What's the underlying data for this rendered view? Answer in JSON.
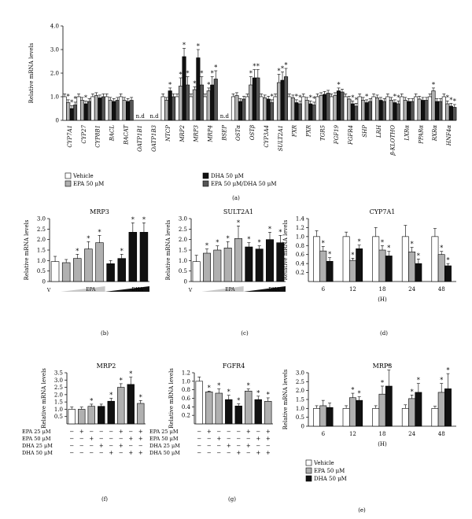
{
  "colors": {
    "white": "#ffffff",
    "gray": "#b0b0b0",
    "black": "#111111",
    "dark": "#555555"
  },
  "chart_data": [
    {
      "id": "a",
      "panel_label": "(a)",
      "type": "bar",
      "ylabel": "Relative mRNA levels",
      "ylim": [
        0,
        4.0
      ],
      "yticks": [
        "0",
        "1.0",
        "2.0",
        "3.0",
        "4.0"
      ],
      "series": [
        {
          "name": "Vehicle"
        },
        {
          "name": "EPA 50 μM"
        },
        {
          "name": "DHA 50 μM"
        },
        {
          "name": "EPA 50 μM/DHA 50 μM"
        }
      ],
      "legend": [
        "Vehicle",
        "EPA 50 μM",
        "DHA 50 μM",
        "EPA 50 μM/DHA 50 μM"
      ],
      "categories": [
        "CYP7A1",
        "CYP27",
        "CYP8B1",
        "BACL",
        "BACAT",
        "OATP1B1",
        "OATP1B3",
        "NTCP",
        "MRP2",
        "MRP3",
        "MRP4",
        "BSEP",
        "OSTα",
        "OSTβ",
        "CYP3A4",
        "SULT2A1",
        "FXR",
        "PXR",
        "TGR5",
        "FGF19",
        "FGFR4",
        "SHP",
        "LRH",
        "β-KLOTHO",
        "LXRα",
        "PPARα",
        "RXRα",
        "HNF4α"
      ],
      "values": [
        [
          1.0,
          0.75,
          0.5,
          0.65
        ],
        [
          1.0,
          0.85,
          0.7,
          0.8
        ],
        [
          1.0,
          1.05,
          0.95,
          1.0
        ],
        [
          1.0,
          0.85,
          0.8,
          0.85
        ],
        [
          1.0,
          0.85,
          0.8,
          0.85
        ],
        null,
        null,
        [
          1.0,
          0.85,
          1.25,
          1.0
        ],
        [
          1.0,
          1.45,
          2.7,
          1.5
        ],
        [
          1.0,
          1.3,
          2.65,
          1.5
        ],
        [
          1.0,
          1.25,
          1.5,
          1.75
        ],
        null,
        [
          1.0,
          1.05,
          0.8,
          0.9
        ],
        [
          1.0,
          1.5,
          1.8,
          1.8
        ],
        [
          1.0,
          0.95,
          0.9,
          0.75
        ],
        [
          1.0,
          1.6,
          1.7,
          1.85
        ],
        [
          1.0,
          0.95,
          0.75,
          0.7
        ],
        [
          1.0,
          0.85,
          0.7,
          0.65
        ],
        [
          1.0,
          1.05,
          1.1,
          1.15
        ],
        [
          1.0,
          1.05,
          1.25,
          1.2
        ],
        [
          1.0,
          0.9,
          0.7,
          0.6
        ],
        [
          1.0,
          0.85,
          0.75,
          0.8
        ],
        [
          1.0,
          0.95,
          0.85,
          0.8
        ],
        [
          1.0,
          0.85,
          0.75,
          0.7
        ],
        [
          1.0,
          0.85,
          0.8,
          0.8
        ],
        [
          1.0,
          0.9,
          0.85,
          0.85
        ],
        [
          1.0,
          1.25,
          0.8,
          0.8
        ],
        [
          1.0,
          0.7,
          0.6,
          0.55
        ]
      ],
      "na_label": "n.d"
    },
    {
      "id": "b",
      "panel_label": "(b)",
      "title": "MRP3",
      "type": "bar",
      "ylabel": "Relative mRNA levels",
      "ylim": [
        0,
        3.0
      ],
      "yticks": [
        "0",
        "0.5",
        "1.0",
        "1.5",
        "2.0",
        "2.5",
        "3.0"
      ],
      "values": [
        0.95,
        0.9,
        1.1,
        1.55,
        1.85,
        0.85,
        1.1,
        2.35,
        2.35
      ],
      "errors": [
        0.25,
        0.15,
        0.2,
        0.35,
        0.35,
        0.15,
        0.2,
        0.45,
        0.45
      ],
      "sig": [
        false,
        false,
        true,
        true,
        true,
        false,
        true,
        true,
        true
      ],
      "fills": [
        "white",
        "gray",
        "gray",
        "gray",
        "gray",
        "black",
        "black",
        "black",
        "black"
      ],
      "group_labels": [
        "V",
        "EPA",
        "DHA"
      ]
    },
    {
      "id": "c",
      "panel_label": "(c)",
      "title": "SULT2A1",
      "type": "bar",
      "ylabel": "Relative mRNA levels",
      "ylim": [
        0,
        3.0
      ],
      "yticks": [
        "0",
        "0.5",
        "1.0",
        "1.5",
        "2.0",
        "2.5",
        "3.0"
      ],
      "values": [
        0.95,
        1.35,
        1.5,
        1.6,
        2.05,
        1.65,
        1.55,
        2.0,
        1.85
      ],
      "errors": [
        0.3,
        0.2,
        0.2,
        0.3,
        0.6,
        0.2,
        0.15,
        0.35,
        0.35
      ],
      "sig": [
        false,
        true,
        true,
        true,
        true,
        true,
        true,
        true,
        true
      ],
      "fills": [
        "white",
        "gray",
        "gray",
        "gray",
        "gray",
        "black",
        "black",
        "black",
        "black"
      ],
      "group_labels": [
        "V",
        "EPA",
        "DHA"
      ]
    },
    {
      "id": "d",
      "panel_label": "(d)",
      "title": "CYP7A1",
      "type": "bar",
      "ylabel": "Relative mRNA levels",
      "xlabel": "(H)",
      "ylim": [
        0,
        1.4
      ],
      "yticks": [
        "0.2",
        "0.4",
        "0.6",
        "0.8",
        "1.0",
        "1.2",
        "1.4"
      ],
      "categories": [
        "6",
        "12",
        "18",
        "24",
        "48"
      ],
      "values": [
        [
          1.0,
          0.68,
          0.45
        ],
        [
          1.0,
          0.47,
          0.73
        ],
        [
          1.0,
          0.7,
          0.57
        ],
        [
          1.0,
          0.66,
          0.4
        ],
        [
          1.0,
          0.6,
          0.35
        ]
      ],
      "errors": [
        [
          0.13,
          0.1,
          0.08
        ],
        [
          0.1,
          0.05,
          0.08
        ],
        [
          0.2,
          0.1,
          0.1
        ],
        [
          0.25,
          0.1,
          0.1
        ],
        [
          0.18,
          0.07,
          0.05
        ]
      ],
      "sig": [
        [
          false,
          true,
          true
        ],
        [
          false,
          true,
          true
        ],
        [
          false,
          true,
          true
        ],
        [
          false,
          true,
          true
        ],
        [
          false,
          true,
          true
        ]
      ]
    },
    {
      "id": "f",
      "panel_label": "(f)",
      "title": "MRP2",
      "type": "bar",
      "ylabel": "Relative mRNA levels",
      "ylim": [
        0,
        3.5
      ],
      "yticks": [
        "0.5",
        "1.0",
        "1.5",
        "2.0",
        "2.5",
        "3.0",
        "3.5"
      ],
      "values": [
        1.0,
        1.0,
        1.2,
        1.2,
        1.55,
        2.5,
        2.7,
        1.4
      ],
      "errors": [
        0.15,
        0.15,
        0.15,
        0.15,
        0.2,
        0.25,
        0.5,
        0.2
      ],
      "sig": [
        false,
        false,
        true,
        false,
        true,
        true,
        true,
        true
      ],
      "fills": [
        "white",
        "gray",
        "gray",
        "black",
        "black",
        "gray",
        "black",
        "gray"
      ],
      "row_labels": [
        "EPA 25 μM",
        "EPA 50 μM",
        "DHA 25 μM",
        "DHA 50 μM"
      ],
      "signs": [
        [
          "−",
          "+",
          "−",
          "−",
          "−",
          "+",
          "−",
          "+"
        ],
        [
          "−",
          "−",
          "+",
          "−",
          "−",
          "−",
          "+",
          "+"
        ],
        [
          "−",
          "−",
          "−",
          "+",
          "−",
          "+",
          "−",
          "−"
        ],
        [
          "−",
          "−",
          "−",
          "−",
          "+",
          "−",
          "+",
          "+"
        ]
      ]
    },
    {
      "id": "g",
      "panel_label": "(g)",
      "title": "FGFR4",
      "type": "bar",
      "ylabel": "Relative mRNA levels",
      "ylim": [
        0,
        1.2
      ],
      "yticks": [
        "0.2",
        "0.4",
        "0.6",
        "0.8",
        "1.0",
        "1.2"
      ],
      "values": [
        1.0,
        0.75,
        0.72,
        0.57,
        0.42,
        0.77,
        0.57,
        0.53
      ],
      "errors": [
        0.1,
        0.02,
        0.1,
        0.1,
        0.05,
        0.05,
        0.08,
        0.08
      ],
      "sig": [
        false,
        true,
        true,
        true,
        true,
        true,
        true,
        true
      ],
      "fills": [
        "white",
        "gray",
        "gray",
        "black",
        "black",
        "gray",
        "black",
        "gray"
      ],
      "row_labels": [
        "EPA 25 μM",
        "EPA 50 μM",
        "DHA 25 μM",
        "DHA 50 μM"
      ],
      "signs": [
        [
          "−",
          "+",
          "−",
          "−",
          "−",
          "+",
          "−",
          "+"
        ],
        [
          "−",
          "−",
          "+",
          "−",
          "−",
          "−",
          "+",
          "+"
        ],
        [
          "−",
          "−",
          "−",
          "+",
          "−",
          "+",
          "−",
          "−"
        ],
        [
          "−",
          "−",
          "−",
          "−",
          "+",
          "−",
          "+",
          "+"
        ]
      ]
    },
    {
      "id": "e",
      "panel_label": "(e)",
      "title": "MRP3",
      "type": "bar",
      "ylabel": "Relative mRNA levels",
      "xlabel": "(H)",
      "ylim": [
        0,
        3.0
      ],
      "yticks": [
        "0",
        "0.5",
        "1.0",
        "1.5",
        "2.0",
        "2.5",
        "3.0"
      ],
      "categories": [
        "6",
        "12",
        "18",
        "24",
        "48"
      ],
      "values": [
        [
          1.0,
          1.15,
          1.05
        ],
        [
          1.0,
          1.6,
          1.45
        ],
        [
          1.0,
          1.8,
          2.25
        ],
        [
          1.0,
          1.55,
          1.9
        ],
        [
          1.0,
          1.9,
          2.1
        ]
      ],
      "errors": [
        [
          0.15,
          0.3,
          0.25
        ],
        [
          0.15,
          0.25,
          0.2
        ],
        [
          0.15,
          0.45,
          0.9
        ],
        [
          0.2,
          0.2,
          0.5
        ],
        [
          0.12,
          0.5,
          0.85
        ]
      ],
      "sig": [
        [
          false,
          false,
          false
        ],
        [
          false,
          true,
          true
        ],
        [
          false,
          true,
          true
        ],
        [
          false,
          true,
          true
        ],
        [
          false,
          true,
          true
        ]
      ],
      "legend": [
        "Vehicle",
        "EPA 50 μM",
        "DHA 50 μM"
      ]
    }
  ]
}
